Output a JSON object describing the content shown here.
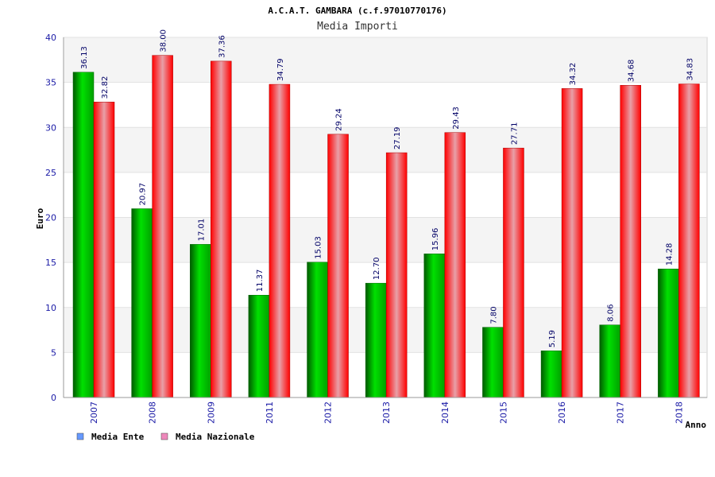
{
  "chart_data": {
    "type": "bar",
    "title": "A.C.A.T. GAMBARA (c.f.97010770176)",
    "subtitle": "Media Importi",
    "xlabel": "Anno",
    "ylabel": "Euro",
    "ylim": [
      0,
      40
    ],
    "yticks": [
      0,
      5,
      10,
      15,
      20,
      25,
      30,
      35,
      40
    ],
    "grid": true,
    "legend_position": "bottom-left",
    "categories": [
      "2007",
      "2008",
      "2009",
      "2011",
      "2012",
      "2013",
      "2014",
      "2015",
      "2016",
      "2017",
      "2018"
    ],
    "series": [
      {
        "name": "Media Ente",
        "values": [
          36.13,
          20.97,
          17.01,
          11.37,
          15.03,
          12.7,
          15.96,
          7.8,
          5.19,
          8.06,
          14.28
        ],
        "labels": [
          "36.13",
          "20.97",
          "17.01",
          "11.37",
          "15.03",
          "12.70",
          "15.96",
          "7.80",
          "5.19",
          "8.06",
          "14.28"
        ],
        "color": "#00cc00",
        "legend_color": "#6699ff"
      },
      {
        "name": "Media Nazionale",
        "values": [
          32.82,
          38.0,
          37.36,
          34.79,
          29.24,
          27.19,
          29.43,
          27.71,
          34.32,
          34.68,
          34.83
        ],
        "labels": [
          "32.82",
          "38.00",
          "37.36",
          "34.79",
          "29.24",
          "27.19",
          "29.43",
          "27.71",
          "34.32",
          "34.68",
          "34.83"
        ],
        "color": "#ff1a1a",
        "legend_color": "#ee88bb"
      }
    ]
  }
}
